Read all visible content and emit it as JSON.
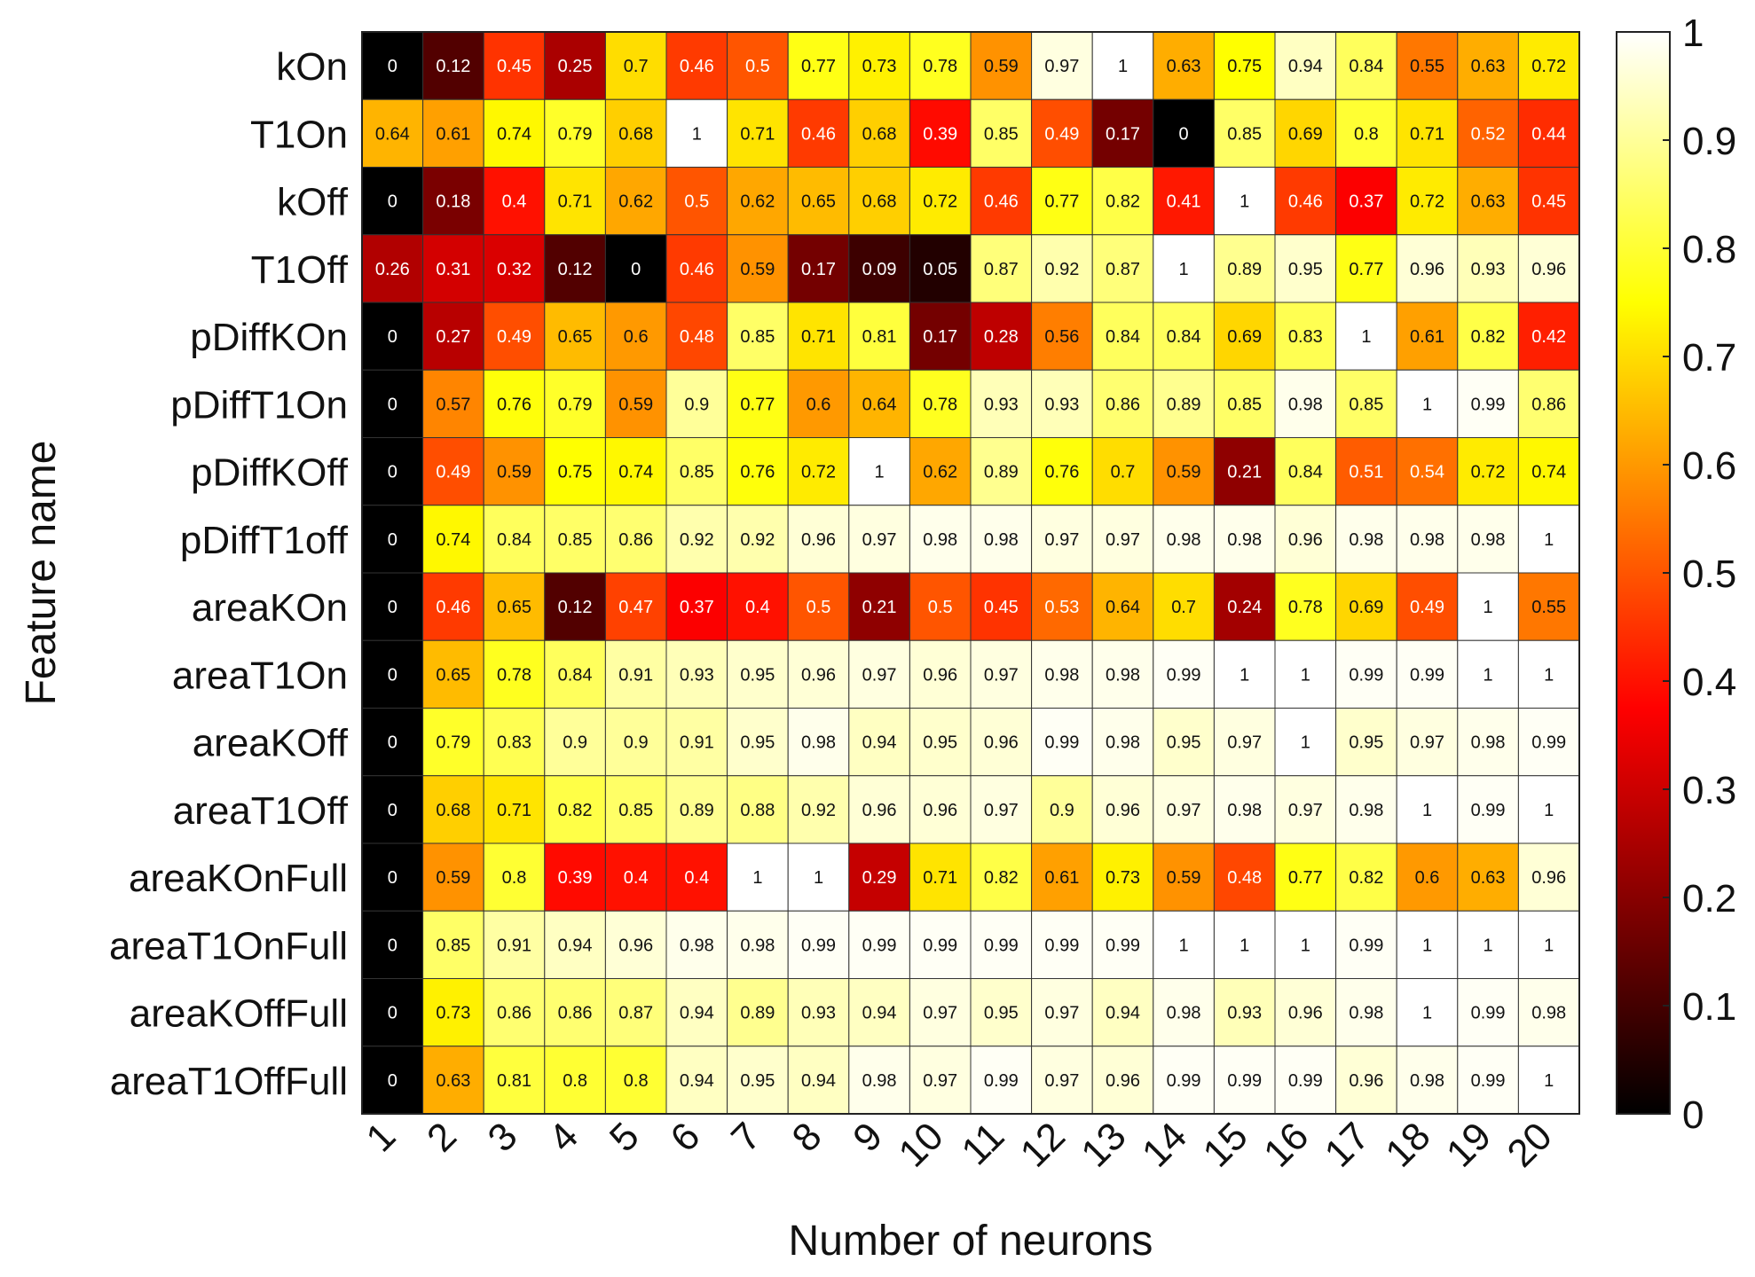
{
  "chart_data": {
    "type": "heatmap",
    "xlabel": "Number of neurons",
    "ylabel": "Feature name",
    "x": [
      "1",
      "2",
      "3",
      "4",
      "5",
      "6",
      "7",
      "8",
      "9",
      "10",
      "11",
      "12",
      "13",
      "14",
      "15",
      "16",
      "17",
      "18",
      "19",
      "20"
    ],
    "y": [
      "kOn",
      "T1On",
      "kOff",
      "T1Off",
      "pDiffKOn",
      "pDiffT1On",
      "pDiffKOff",
      "pDiffT1off",
      "areaKOn",
      "areaT1On",
      "areaKOff",
      "areaT1Off",
      "areaKOnFull",
      "areaT1OnFull",
      "areaKOffFull",
      "areaT1OffFull"
    ],
    "values": [
      [
        "0",
        "0.12",
        "0.45",
        "0.25",
        "0.7",
        "0.46",
        "0.5",
        "0.77",
        "0.73",
        "0.78",
        "0.59",
        "0.97",
        "1",
        "0.63",
        "0.75",
        "0.94",
        "0.84",
        "0.55",
        "0.63",
        "0.72"
      ],
      [
        "0.64",
        "0.61",
        "0.74",
        "0.79",
        "0.68",
        "1",
        "0.71",
        "0.46",
        "0.68",
        "0.39",
        "0.85",
        "0.49",
        "0.17",
        "0",
        "0.85",
        "0.69",
        "0.8",
        "0.71",
        "0.52",
        "0.44"
      ],
      [
        "0",
        "0.18",
        "0.4",
        "0.71",
        "0.62",
        "0.5",
        "0.62",
        "0.65",
        "0.68",
        "0.72",
        "0.46",
        "0.77",
        "0.82",
        "0.41",
        "1",
        "0.46",
        "0.37",
        "0.72",
        "0.63",
        "0.45"
      ],
      [
        "0.26",
        "0.31",
        "0.32",
        "0.12",
        "0",
        "0.46",
        "0.59",
        "0.17",
        "0.09",
        "0.05",
        "0.87",
        "0.92",
        "0.87",
        "1",
        "0.89",
        "0.95",
        "0.77",
        "0.96",
        "0.93",
        "0.96"
      ],
      [
        "0",
        "0.27",
        "0.49",
        "0.65",
        "0.6",
        "0.48",
        "0.85",
        "0.71",
        "0.81",
        "0.17",
        "0.28",
        "0.56",
        "0.84",
        "0.84",
        "0.69",
        "0.83",
        "1",
        "0.61",
        "0.82",
        "0.42"
      ],
      [
        "0",
        "0.57",
        "0.76",
        "0.79",
        "0.59",
        "0.9",
        "0.77",
        "0.6",
        "0.64",
        "0.78",
        "0.93",
        "0.93",
        "0.86",
        "0.89",
        "0.85",
        "0.98",
        "0.85",
        "1",
        "0.99",
        "0.86"
      ],
      [
        "0",
        "0.49",
        "0.59",
        "0.75",
        "0.74",
        "0.85",
        "0.76",
        "0.72",
        "1",
        "0.62",
        "0.89",
        "0.76",
        "0.7",
        "0.59",
        "0.21",
        "0.84",
        "0.51",
        "0.54",
        "0.72",
        "0.74"
      ],
      [
        "0",
        "0.74",
        "0.84",
        "0.85",
        "0.86",
        "0.92",
        "0.92",
        "0.96",
        "0.97",
        "0.98",
        "0.98",
        "0.97",
        "0.97",
        "0.98",
        "0.98",
        "0.96",
        "0.98",
        "0.98",
        "0.98",
        "1"
      ],
      [
        "0",
        "0.46",
        "0.65",
        "0.12",
        "0.47",
        "0.37",
        "0.4",
        "0.5",
        "0.21",
        "0.5",
        "0.45",
        "0.53",
        "0.64",
        "0.7",
        "0.24",
        "0.78",
        "0.69",
        "0.49",
        "1",
        "0.55"
      ],
      [
        "0",
        "0.65",
        "0.78",
        "0.84",
        "0.91",
        "0.93",
        "0.95",
        "0.96",
        "0.97",
        "0.96",
        "0.97",
        "0.98",
        "0.98",
        "0.99",
        "1",
        "1",
        "0.99",
        "0.99",
        "1",
        "1"
      ],
      [
        "0",
        "0.79",
        "0.83",
        "0.9",
        "0.9",
        "0.91",
        "0.95",
        "0.98",
        "0.94",
        "0.95",
        "0.96",
        "0.99",
        "0.98",
        "0.95",
        "0.97",
        "1",
        "0.95",
        "0.97",
        "0.98",
        "0.99"
      ],
      [
        "0",
        "0.68",
        "0.71",
        "0.82",
        "0.85",
        "0.89",
        "0.88",
        "0.92",
        "0.96",
        "0.96",
        "0.97",
        "0.9",
        "0.96",
        "0.97",
        "0.98",
        "0.97",
        "0.98",
        "1",
        "0.99",
        "1"
      ],
      [
        "0",
        "0.59",
        "0.8",
        "0.39",
        "0.4",
        "0.4",
        "1",
        "1",
        "0.29",
        "0.71",
        "0.82",
        "0.61",
        "0.73",
        "0.59",
        "0.48",
        "0.77",
        "0.82",
        "0.6",
        "0.63",
        "0.96"
      ],
      [
        "0",
        "0.85",
        "0.91",
        "0.94",
        "0.96",
        "0.98",
        "0.98",
        "0.99",
        "0.99",
        "0.99",
        "0.99",
        "0.99",
        "0.99",
        "1",
        "1",
        "1",
        "0.99",
        "1",
        "1",
        "1"
      ],
      [
        "0",
        "0.73",
        "0.86",
        "0.86",
        "0.87",
        "0.94",
        "0.89",
        "0.93",
        "0.94",
        "0.97",
        "0.95",
        "0.97",
        "0.94",
        "0.98",
        "0.93",
        "0.96",
        "0.98",
        "1",
        "0.99",
        "0.98"
      ],
      [
        "0",
        "0.63",
        "0.81",
        "0.8",
        "0.8",
        "0.94",
        "0.95",
        "0.94",
        "0.98",
        "0.97",
        "0.99",
        "0.97",
        "0.96",
        "0.99",
        "0.99",
        "0.99",
        "0.96",
        "0.98",
        "0.99",
        "1"
      ]
    ],
    "colormap": "hot",
    "colorbar": {
      "range": [
        0,
        1
      ],
      "ticks": [
        "0",
        "0.1",
        "0.2",
        "0.3",
        "0.4",
        "0.5",
        "0.6",
        "0.7",
        "0.8",
        "0.9",
        "1"
      ]
    }
  }
}
